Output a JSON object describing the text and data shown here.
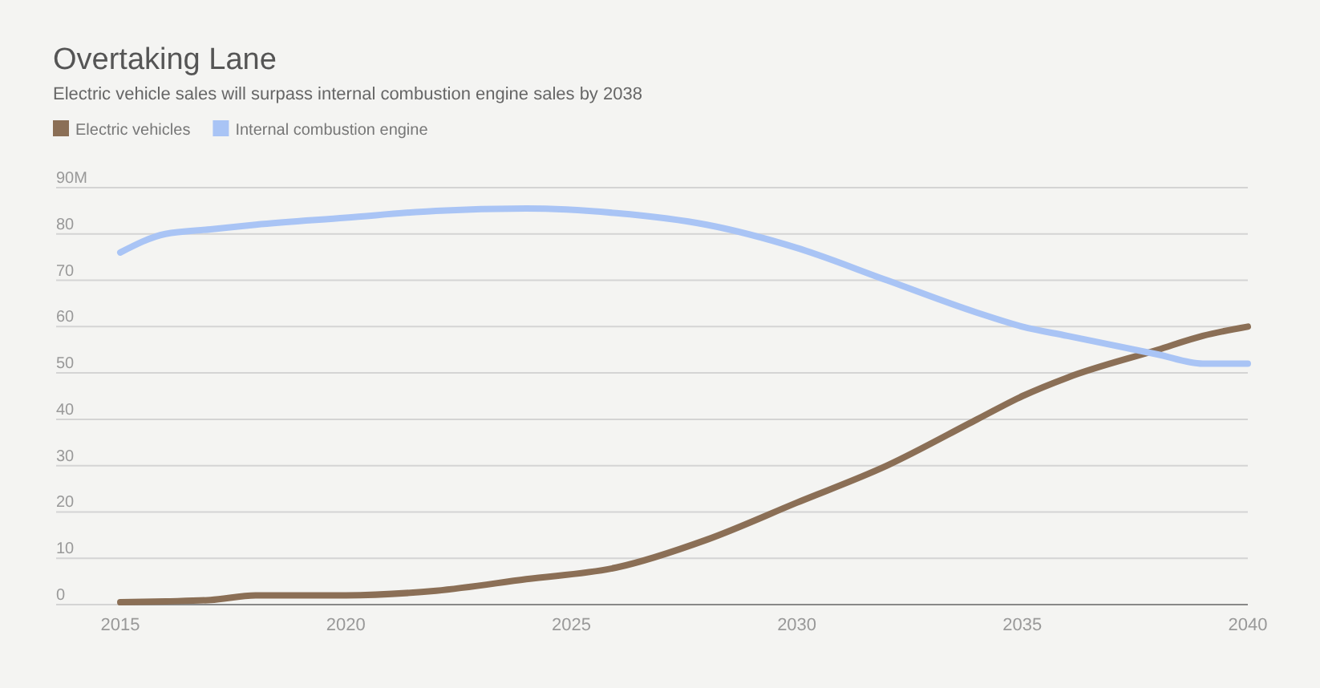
{
  "chart_data": {
    "type": "line",
    "title": "Overtaking Lane",
    "subtitle": "Electric vehicle sales will surpass internal combustion engine sales by 2038",
    "x": [
      2015,
      2016,
      2017,
      2018,
      2020,
      2022,
      2024,
      2026,
      2028,
      2030,
      2032,
      2034,
      2035,
      2036,
      2038,
      2039,
      2040
    ],
    "series": [
      {
        "name": "Electric vehicles",
        "color": "#8b6f56",
        "values": [
          0.5,
          0.7,
          1,
          2,
          2,
          3,
          5.5,
          8,
          14,
          22,
          30,
          40,
          45,
          49,
          55,
          58,
          60
        ]
      },
      {
        "name": "Internal combustion engine",
        "color": "#a9c4f5",
        "values": [
          76,
          80,
          81,
          82,
          83.5,
          85,
          85.5,
          84.5,
          82,
          77,
          70,
          63,
          60,
          58,
          54,
          52,
          52
        ]
      }
    ],
    "xlim": [
      2015,
      2040
    ],
    "xticks": [
      2015,
      2020,
      2025,
      2030,
      2035,
      2040
    ],
    "ylim": [
      0,
      90
    ],
    "yticks": [
      0,
      10,
      20,
      30,
      40,
      50,
      60,
      70,
      80,
      {
        "value": 90,
        "label": "90M"
      }
    ],
    "grid": "y",
    "legend": "top left",
    "marker": "none",
    "line_style": "solid"
  }
}
